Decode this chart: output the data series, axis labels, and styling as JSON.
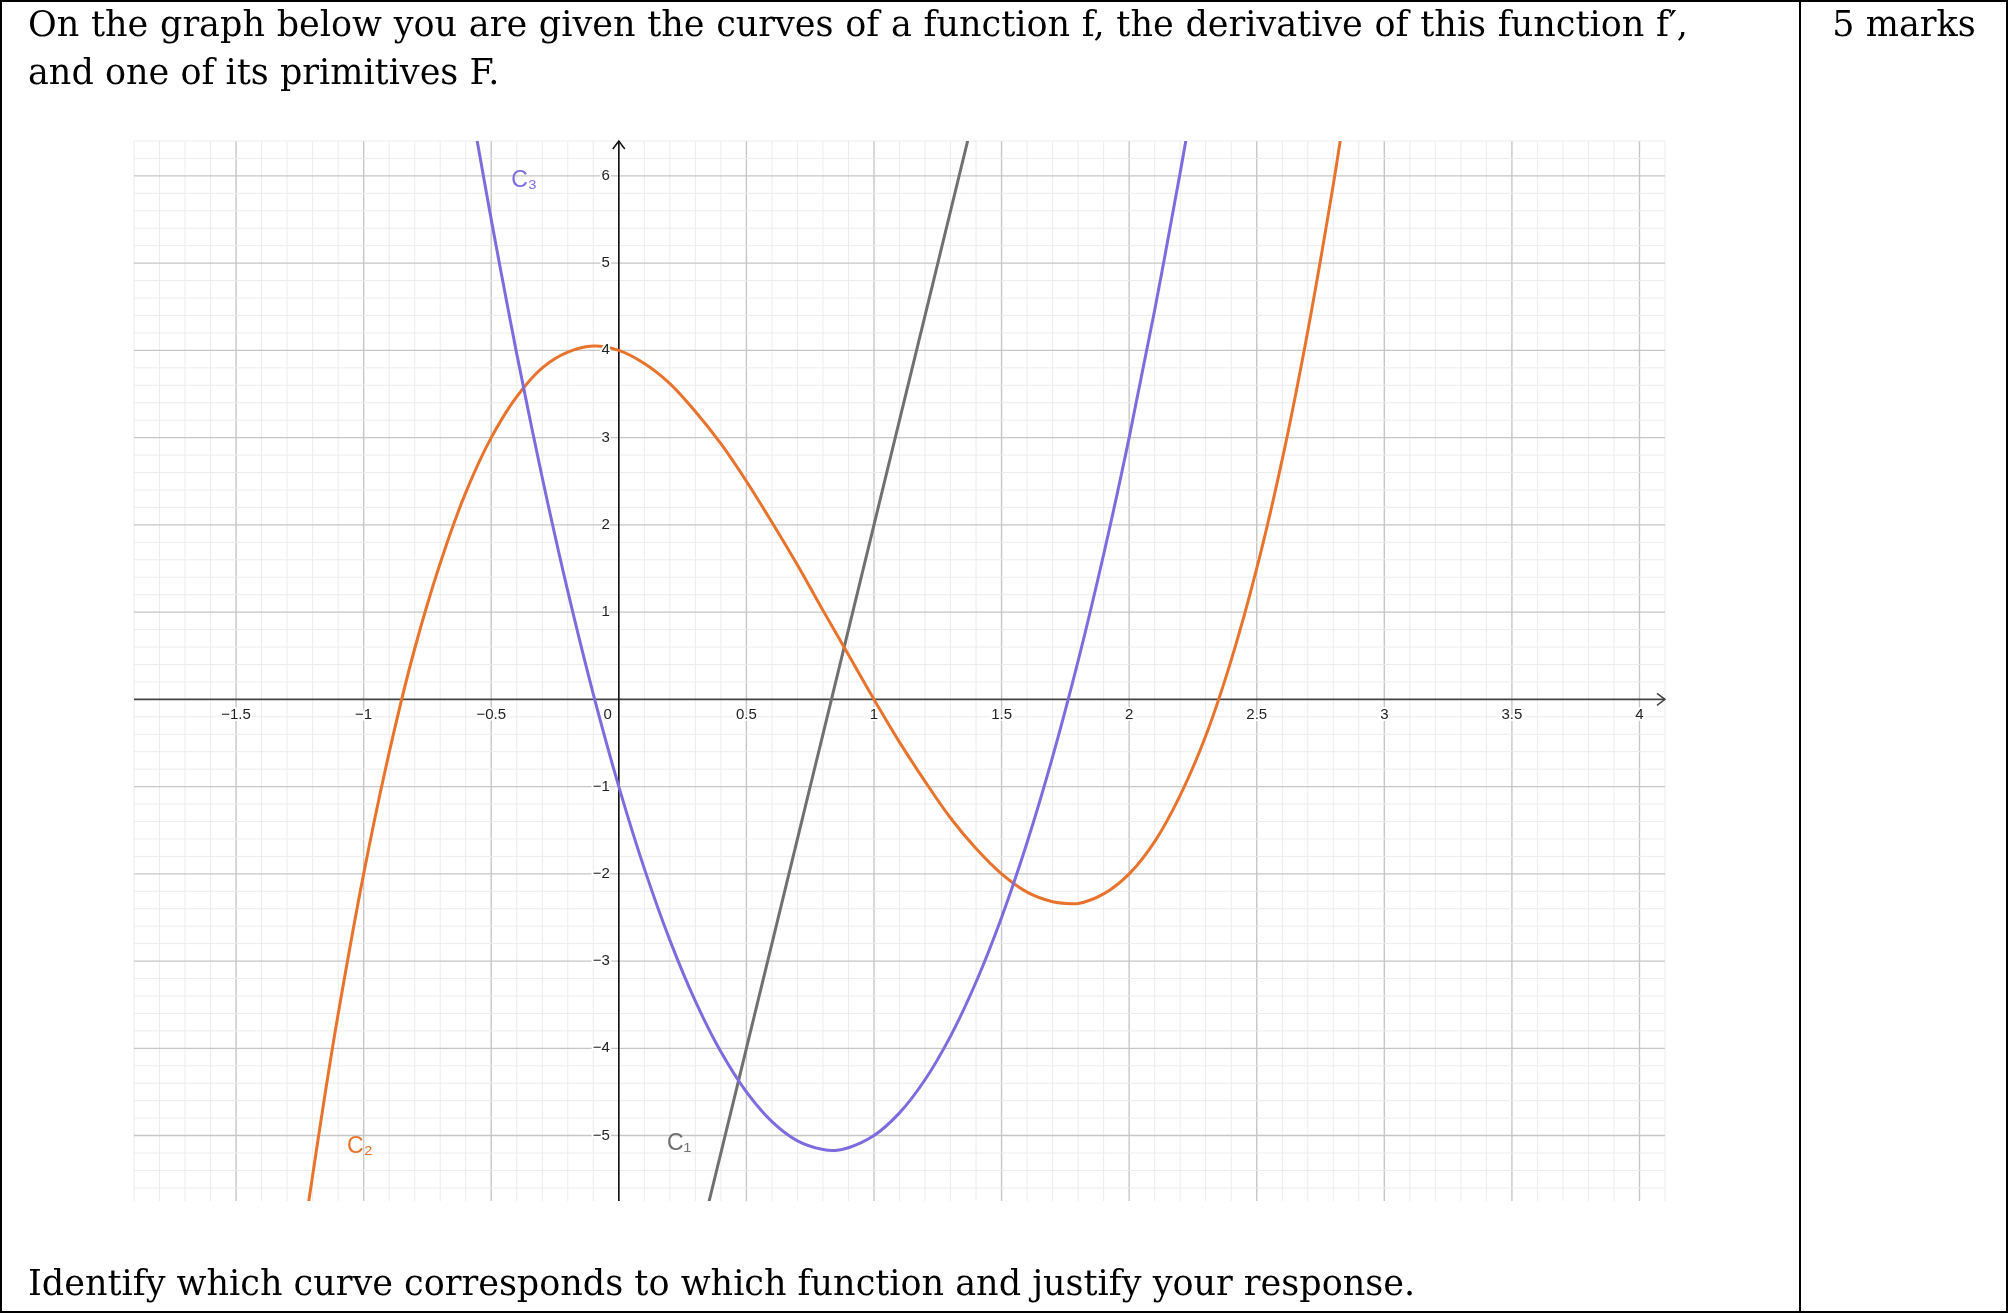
{
  "chart_data": {
    "type": "line",
    "title": "On the graph below you are given the curves of a function f, the derivative of this function f′, and one of its primitives F.",
    "annotations": [
      "5 marks",
      "Identify which curve corresponds to which function and justify your response."
    ],
    "xlim": [
      -1.9,
      4.1
    ],
    "ylim": [
      -5.75,
      6.4
    ],
    "xticks": [
      {
        "value": -1.9,
        "label": null
      },
      {
        "value": -1.8,
        "label": null
      },
      {
        "value": -1.7,
        "label": null
      },
      {
        "value": -1.6,
        "label": null
      },
      {
        "value": -1.5,
        "label": "−1.5"
      },
      {
        "value": -1.4,
        "label": null
      },
      {
        "value": -1.3,
        "label": null
      },
      {
        "value": -1.2,
        "label": null
      },
      {
        "value": -1.1,
        "label": null
      },
      {
        "value": -1,
        "label": "−1"
      },
      {
        "value": -0.9,
        "label": null
      },
      {
        "value": -0.8,
        "label": null
      },
      {
        "value": -0.7,
        "label": null
      },
      {
        "value": -0.6,
        "label": null
      },
      {
        "value": -0.5,
        "label": "−0.5"
      },
      {
        "value": -0.4,
        "label": null
      },
      {
        "value": -0.3,
        "label": null
      },
      {
        "value": -0.2,
        "label": null
      },
      {
        "value": -0.1,
        "label": null
      },
      0,
      {
        "value": 0.1,
        "label": null
      },
      {
        "value": 0.2,
        "label": null
      },
      {
        "value": 0.3,
        "label": null
      },
      {
        "value": 0.4,
        "label": null
      },
      0.5,
      {
        "value": 0.6,
        "label": null
      },
      {
        "value": 0.7,
        "label": null
      },
      {
        "value": 0.8,
        "label": null
      },
      {
        "value": 0.9,
        "label": null
      },
      1,
      {
        "value": 1.1,
        "label": null
      },
      {
        "value": 1.2,
        "label": null
      },
      {
        "value": 1.3,
        "label": null
      },
      {
        "value": 1.4,
        "label": null
      },
      1.5,
      {
        "value": 1.6,
        "label": null
      },
      {
        "value": 1.7,
        "label": null
      },
      {
        "value": 1.8,
        "label": null
      },
      {
        "value": 1.9,
        "label": null
      },
      2,
      {
        "value": 2.1,
        "label": null
      },
      {
        "value": 2.2,
        "label": null
      },
      {
        "value": 2.3,
        "label": null
      },
      {
        "value": 2.4,
        "label": null
      },
      2.5,
      {
        "value": 2.6,
        "label": null
      },
      {
        "value": 2.7,
        "label": null
      },
      {
        "value": 2.8,
        "label": null
      },
      {
        "value": 2.9,
        "label": null
      },
      3,
      {
        "value": 3.1,
        "label": null
      },
      {
        "value": 3.2,
        "label": null
      },
      {
        "value": 3.3,
        "label": null
      },
      {
        "value": 3.4,
        "label": null
      },
      3.5,
      {
        "value": 3.6,
        "label": null
      },
      {
        "value": 3.7,
        "label": null
      },
      {
        "value": 3.8,
        "label": null
      },
      {
        "value": 3.9,
        "label": null
      },
      4,
      {
        "value": 4.1,
        "label": null
      }
    ],
    "yticks": [
      {
        "value": -5.6,
        "label": null
      },
      {
        "value": -5.4,
        "label": null
      },
      {
        "value": -5.2,
        "label": null
      },
      {
        "value": -5,
        "label": "−5"
      },
      {
        "value": -4.8,
        "label": null
      },
      {
        "value": -4.6,
        "label": null
      },
      {
        "value": -4.4,
        "label": null
      },
      {
        "value": -4.2,
        "label": null
      },
      {
        "value": -4,
        "label": "−4"
      },
      {
        "value": -3.8,
        "label": null
      },
      {
        "value": -3.6,
        "label": null
      },
      {
        "value": -3.4,
        "label": null
      },
      {
        "value": -3.2,
        "label": null
      },
      {
        "value": -3,
        "label": "−3"
      },
      {
        "value": -2.8,
        "label": null
      },
      {
        "value": -2.6,
        "label": null
      },
      {
        "value": -2.4,
        "label": null
      },
      {
        "value": -2.2,
        "label": null
      },
      {
        "value": -2,
        "label": "−2"
      },
      {
        "value": -1.8,
        "label": null
      },
      {
        "value": -1.6,
        "label": null
      },
      {
        "value": -1.4,
        "label": null
      },
      {
        "value": -1.2,
        "label": null
      },
      {
        "value": -1,
        "label": "−1"
      },
      {
        "value": -0.8,
        "label": null
      },
      {
        "value": -0.6,
        "label": null
      },
      {
        "value": -0.4,
        "label": null
      },
      {
        "value": -0.2,
        "label": null
      },
      {
        "value": 0,
        "label": null
      },
      {
        "value": 0.2,
        "label": null
      },
      {
        "value": 0.4,
        "label": null
      },
      {
        "value": 0.6,
        "label": null
      },
      {
        "value": 0.8,
        "label": null
      },
      1,
      {
        "value": 1.2,
        "label": null
      },
      {
        "value": 1.4,
        "label": null
      },
      {
        "value": 1.6,
        "label": null
      },
      {
        "value": 1.8,
        "label": null
      },
      2,
      {
        "value": 2.2,
        "label": null
      },
      {
        "value": 2.4,
        "label": null
      },
      {
        "value": 2.6,
        "label": null
      },
      {
        "value": 2.8,
        "label": null
      },
      3,
      {
        "value": 3.2,
        "label": null
      },
      {
        "value": 3.4,
        "label": null
      },
      {
        "value": 3.6,
        "label": null
      },
      {
        "value": 3.8,
        "label": null
      },
      4,
      {
        "value": 4.2,
        "label": null
      },
      {
        "value": 4.4,
        "label": null
      },
      {
        "value": 4.6,
        "label": null
      },
      {
        "value": 4.8,
        "label": null
      },
      5,
      {
        "value": 5.2,
        "label": null
      },
      {
        "value": 5.4,
        "label": null
      },
      {
        "value": 5.6,
        "label": null
      },
      {
        "value": 5.8,
        "label": null
      },
      6,
      {
        "value": 6.2,
        "label": null
      },
      {
        "value": 6.4,
        "label": null
      }
    ],
    "grid": true,
    "series": [
      {
        "name": "C₁",
        "color": "#707070",
        "x": [
          0.354,
          0.5,
          1,
          1.367
        ],
        "values": [
          -5.75,
          -4,
          2,
          6.4
        ]
      },
      {
        "name": "C₂",
        "color": "#e8732c",
        "x": [
          -1.215,
          -1.15,
          -1.1,
          -1,
          -0.9,
          -0.8,
          -0.7,
          -0.6,
          -0.5,
          -0.4,
          -0.3,
          -0.2,
          -0.1,
          0,
          0.1,
          0.2,
          0.3,
          0.4,
          0.5,
          0.6,
          0.7,
          0.8,
          0.9,
          1,
          1.1,
          1.2,
          1.3,
          1.4,
          1.5,
          1.6,
          1.7,
          1.76,
          1.8,
          1.9,
          2,
          2.1,
          2.2,
          2.3,
          2.4,
          2.5,
          2.6,
          2.7,
          2.8,
          2.827
        ],
        "values": [
          -5.75,
          -4.5,
          -3.61,
          -2,
          -0.61,
          0.58,
          1.56,
          2.37,
          3,
          3.47,
          3.8,
          3.98,
          4.05,
          4,
          3.85,
          3.62,
          3.3,
          2.93,
          2.5,
          2.03,
          1.54,
          1.02,
          0.51,
          0,
          -0.49,
          -0.94,
          -1.36,
          -1.71,
          -2,
          -2.21,
          -2.32,
          -2.34,
          -2.34,
          -2.23,
          -2,
          -1.63,
          -1.1,
          -0.42,
          0.45,
          1.5,
          2.75,
          4.22,
          5.9,
          6.4
        ]
      },
      {
        "name": "C₃",
        "color": "#7c6cde",
        "x": [
          -0.555,
          -0.5,
          -0.45,
          -0.4,
          -0.3,
          -0.2,
          -0.1,
          0,
          0.1,
          0.2,
          0.3,
          0.4,
          0.5,
          0.6,
          0.7,
          0.8,
          0.85,
          0.9,
          1,
          1.1,
          1.2,
          1.3,
          1.4,
          1.5,
          1.6,
          1.7,
          1.8,
          1.9,
          2,
          2.1,
          2.2,
          2.222
        ],
        "values": [
          6.4,
          5.5,
          4.72,
          3.96,
          2.54,
          1.24,
          0.06,
          -1,
          -1.94,
          -2.76,
          -3.46,
          -4.04,
          -4.5,
          -4.84,
          -5.06,
          -5.16,
          -5.17,
          -5.14,
          -5,
          -4.74,
          -4.36,
          -3.86,
          -3.24,
          -2.5,
          -1.64,
          -0.66,
          0.44,
          1.66,
          3,
          4.46,
          6.04,
          6.4
        ]
      }
    ]
  }
}
